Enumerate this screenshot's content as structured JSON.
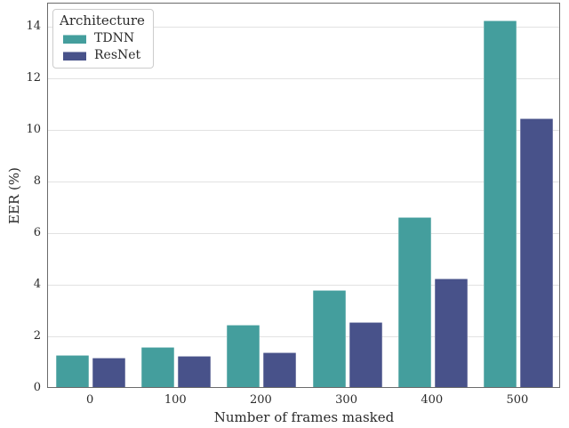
{
  "chart_data": {
    "type": "bar",
    "title": "",
    "xlabel": "Number of frames masked",
    "ylabel": "EER (%)",
    "categories": [
      "0",
      "100",
      "200",
      "300",
      "400",
      "500"
    ],
    "series": [
      {
        "name": "TDNN",
        "color": "#449e9d",
        "values": [
          1.25,
          1.55,
          2.4,
          3.75,
          6.6,
          14.2
        ]
      },
      {
        "name": "ResNet",
        "color": "#48528a",
        "values": [
          1.15,
          1.2,
          1.35,
          2.5,
          4.2,
          10.4
        ]
      }
    ],
    "legend": {
      "title": "Architecture",
      "position": "upper-left"
    },
    "ylim": [
      0,
      14.93
    ],
    "yticks": [
      0,
      2,
      4,
      6,
      8,
      10,
      12,
      14
    ],
    "grid": true,
    "colors": {
      "grid": "#e2e2e2",
      "spine": "#6b6b6b",
      "text": "#262626",
      "background": "#ffffff"
    }
  }
}
